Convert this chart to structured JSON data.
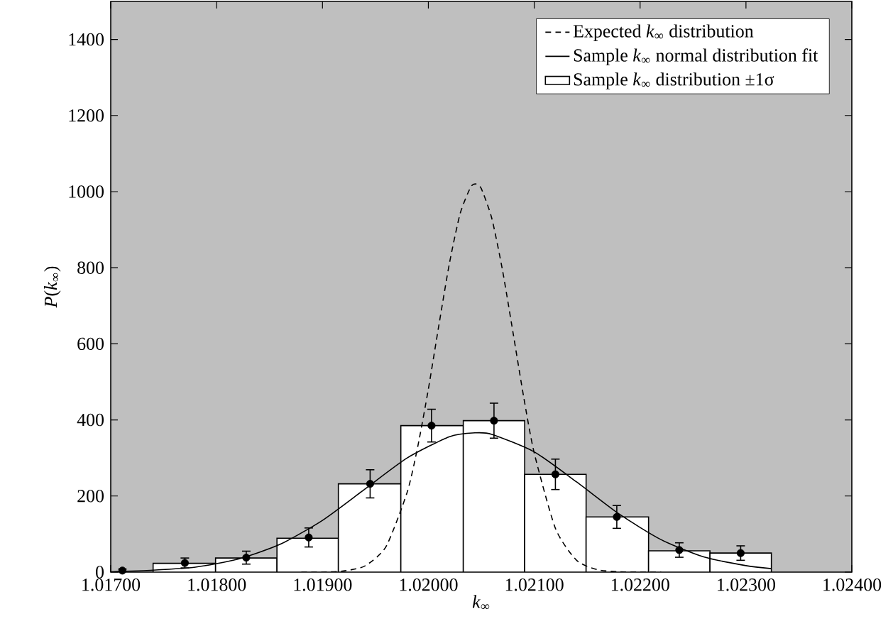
{
  "chart_data": {
    "type": "histogram",
    "xlabel": "*k*$_{∞}$",
    "ylabel": "*P*(*k*$_{∞}$)",
    "xlim": [
      1.017,
      1.024
    ],
    "ylim": [
      0,
      1500
    ],
    "xticks": [
      {
        "value": 1.017,
        "label": "1.01700"
      },
      {
        "value": 1.018,
        "label": "1.01800"
      },
      {
        "value": 1.019,
        "label": "1.01900"
      },
      {
        "value": 1.02,
        "label": "1.02000"
      },
      {
        "value": 1.021,
        "label": "1.02100"
      },
      {
        "value": 1.022,
        "label": "1.02200"
      },
      {
        "value": 1.023,
        "label": "1.02300"
      },
      {
        "value": 1.024,
        "label": "1.02400"
      }
    ],
    "yticks": [
      0,
      200,
      400,
      600,
      800,
      1000,
      1200,
      1400
    ],
    "legend": "top right",
    "series": [
      {
        "type": "line",
        "name": "Expected *k*$_{∞}$ distribution",
        "color": "#000000",
        "line_style": "dashed",
        "marker": "none",
        "x": [
          1.0188,
          1.019,
          1.0192,
          1.0194,
          1.0196,
          1.0198,
          1.0199,
          1.02,
          1.0201,
          1.0202,
          1.0203,
          1.0204,
          1.02045,
          1.0205,
          1.0206,
          1.0207,
          1.0208,
          1.0209,
          1.021,
          1.0212,
          1.0214,
          1.0216,
          1.0218,
          1.022,
          1.0222
        ],
        "values": [
          0,
          0,
          3,
          16,
          67,
          210,
          330,
          481,
          650,
          813,
          942,
          1012,
          1020,
          1008,
          929,
          794,
          629,
          461,
          313,
          115,
          31,
          6,
          1,
          0,
          0
        ]
      },
      {
        "type": "line",
        "name": "Sample *k*$_{∞}$ normal distribution fit",
        "color": "#000000",
        "line_style": "solid",
        "marker": "none",
        "x": [
          1.017,
          1.0174,
          1.0178,
          1.0182,
          1.0186,
          1.019,
          1.0194,
          1.0198,
          1.0202,
          1.02044,
          1.0206,
          1.021,
          1.0214,
          1.0218,
          1.0222,
          1.0226,
          1.023,
          1.02324
        ],
        "values": [
          1,
          5,
          13,
          34,
          73,
          136,
          218,
          300,
          356,
          366,
          362,
          316,
          237,
          153,
          85,
          40,
          17,
          9
        ]
      },
      {
        "name": "Sample *k*$_{∞}$ distribution ±1σ",
        "color": "#ffffff",
        "bins": [
          1.0174,
          1.01799,
          1.01857,
          1.01915,
          1.01974,
          1.02033,
          1.02091,
          1.02149,
          1.02208,
          1.02266,
          1.02324
        ],
        "values": [
          23,
          37,
          89,
          232,
          385,
          398,
          257,
          145,
          56,
          50
        ]
      },
      {
        "type": "scatter",
        "color": "#000000",
        "marker": "circle",
        "x": [
          1.01711,
          1.0177,
          1.01828,
          1.01887,
          1.01945,
          1.02003,
          1.02062,
          1.0212,
          1.02178,
          1.02237,
          1.02295
        ],
        "values": [
          4,
          24,
          38,
          91,
          232,
          385,
          398,
          257,
          145,
          58,
          50
        ],
        "errors": [
          4,
          13,
          17,
          25,
          37,
          43,
          46,
          40,
          30,
          19,
          19
        ]
      }
    ]
  }
}
